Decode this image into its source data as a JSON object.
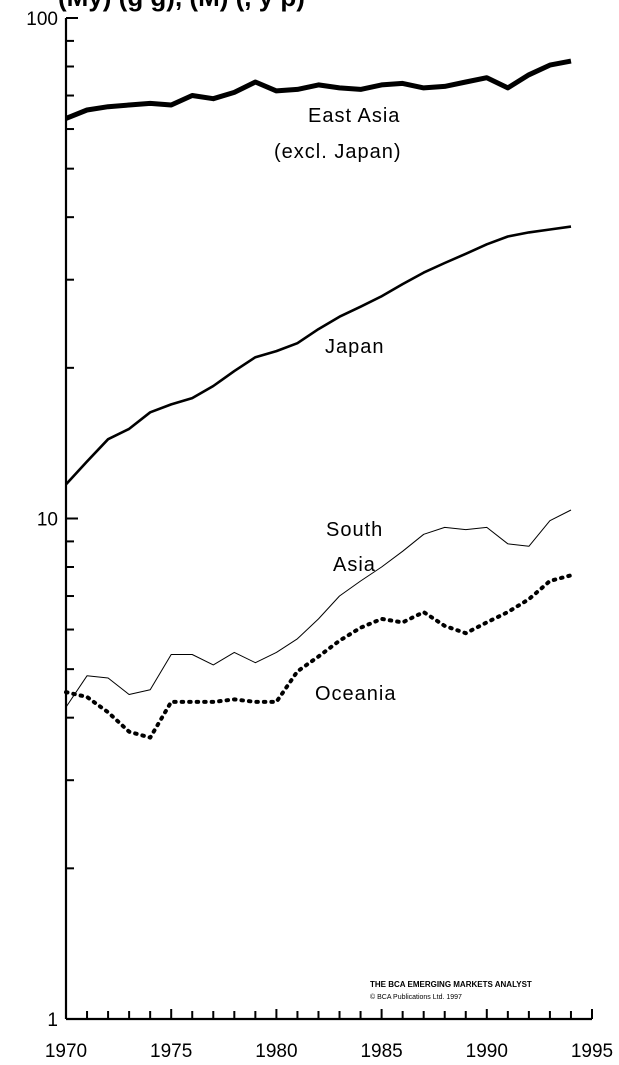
{
  "chart_data": {
    "type": "line",
    "title_partial": "(My) (g g), (M) (, y p)",
    "x": [
      1970,
      1971,
      1972,
      1973,
      1974,
      1975,
      1976,
      1977,
      1978,
      1979,
      1980,
      1981,
      1982,
      1983,
      1984,
      1985,
      1986,
      1987,
      1988,
      1989,
      1990,
      1991,
      1992,
      1993,
      1994
    ],
    "x_ticks": [
      "1970",
      "1975",
      "1980",
      "1985",
      "1990",
      "1995"
    ],
    "x_tick_values": [
      1970,
      1975,
      1980,
      1985,
      1990,
      1995
    ],
    "y_ticks": [
      "1",
      "10",
      "100"
    ],
    "y_tick_values": [
      1,
      10,
      100
    ],
    "y_scale": "log",
    "xlim": [
      1970,
      1995
    ],
    "ylim": [
      1,
      100
    ],
    "grid": false,
    "series": [
      {
        "name": "East Asia",
        "name_line2": "(excl. Japan)",
        "style": "thick",
        "values": [
          63,
          65.5,
          66.5,
          67,
          67.5,
          67,
          70,
          69,
          71,
          74.5,
          71.5,
          72,
          73.5,
          72.5,
          72,
          73.5,
          74,
          72.5,
          73,
          74.5,
          76,
          72.5,
          77,
          80.5,
          82
        ]
      },
      {
        "name": "Japan",
        "style": "solid",
        "values": [
          11.7,
          13,
          14.4,
          15.1,
          16.3,
          16.9,
          17.4,
          18.4,
          19.7,
          21,
          21.6,
          22.4,
          23.9,
          25.3,
          26.5,
          27.8,
          29.4,
          31,
          32.4,
          33.8,
          35.3,
          36.6,
          37.3,
          37.8,
          38.3
        ]
      },
      {
        "name": "South Asia",
        "style": "thin",
        "values": [
          4.2,
          4.85,
          4.8,
          4.45,
          4.55,
          5.35,
          5.35,
          5.1,
          5.4,
          5.15,
          5.4,
          5.75,
          6.3,
          7,
          7.5,
          8,
          8.6,
          9.3,
          9.6,
          9.5,
          9.6,
          8.9,
          8.8,
          9.9,
          10.4
        ]
      },
      {
        "name": "Oceania",
        "style": "dotted",
        "values": [
          4.5,
          4.4,
          4.1,
          3.75,
          3.65,
          4.3,
          4.3,
          4.3,
          4.35,
          4.3,
          4.3,
          4.95,
          5.3,
          5.7,
          6.05,
          6.3,
          6.2,
          6.5,
          6.1,
          5.9,
          6.2,
          6.5,
          6.9,
          7.5,
          7.7
        ]
      }
    ],
    "series_label_lines": {
      "south_asia_line1": "South",
      "south_asia_line2": "Asia"
    },
    "credit": {
      "line1": "THE BCA EMERGING MARKETS ANALYST",
      "line2": "© BCA Publications Ltd. 1997"
    }
  }
}
